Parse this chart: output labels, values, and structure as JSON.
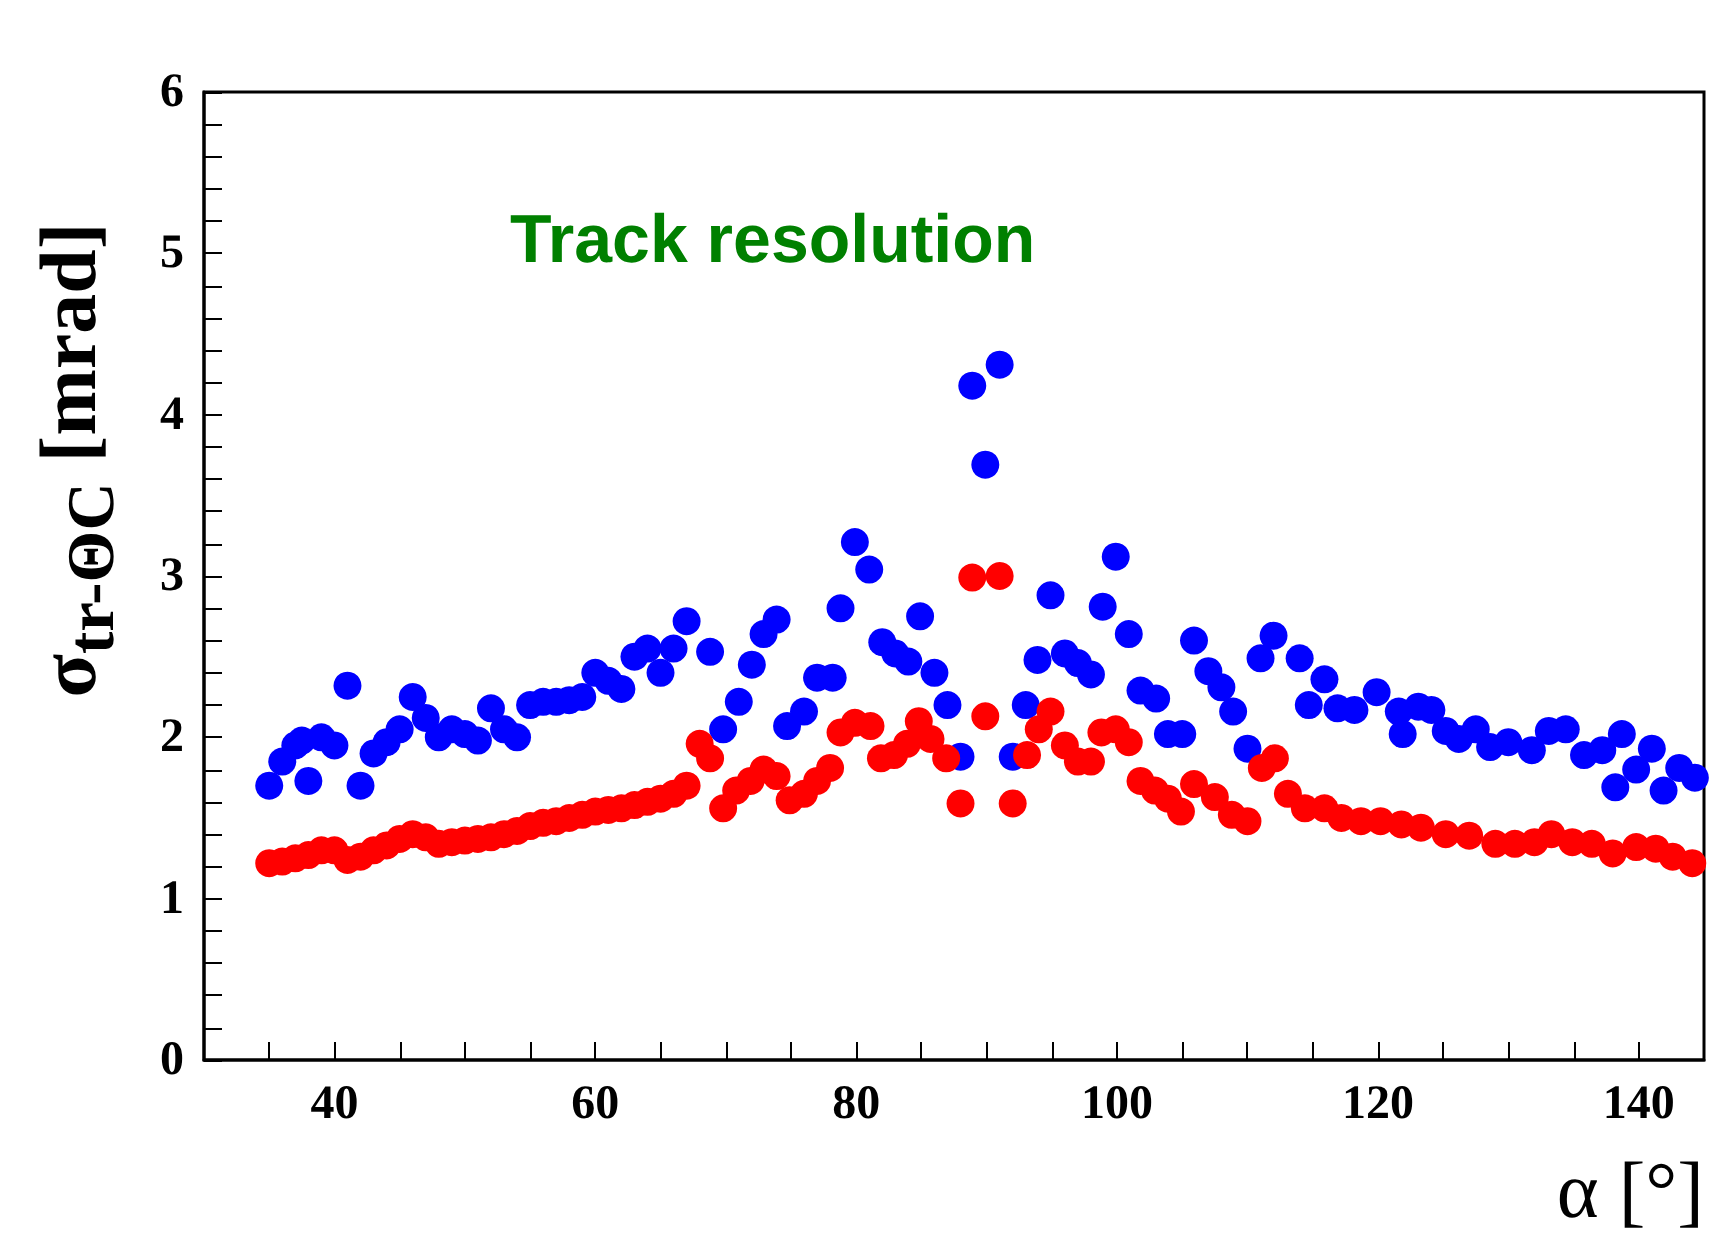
{
  "chart_data": {
    "type": "scatter",
    "title": "Track resolution",
    "xlabel": "α [°]",
    "ylabel": "σ$_{tr-Θ}$$_{C}$ [mrad]",
    "marker": "circle",
    "grid": false,
    "legend": false,
    "xlim": [
      30,
      145
    ],
    "ylim": [
      0,
      6
    ],
    "xticks": [
      {
        "value": 35,
        "label": null
      },
      40,
      {
        "value": 45,
        "label": null
      },
      {
        "value": 50,
        "label": null
      },
      {
        "value": 55,
        "label": null
      },
      60,
      {
        "value": 65,
        "label": null
      },
      {
        "value": 70,
        "label": null
      },
      {
        "value": 75,
        "label": null
      },
      80,
      {
        "value": 85,
        "label": null
      },
      {
        "value": 90,
        "label": null
      },
      {
        "value": 95,
        "label": null
      },
      100,
      {
        "value": 105,
        "label": null
      },
      {
        "value": 110,
        "label": null
      },
      {
        "value": 115,
        "label": null
      },
      120,
      {
        "value": 125,
        "label": null
      },
      {
        "value": 130,
        "label": null
      },
      {
        "value": 135,
        "label": null
      },
      140
    ],
    "yticks": [
      0,
      {
        "value": 0.2,
        "label": null
      },
      {
        "value": 0.4,
        "label": null
      },
      {
        "value": 0.6,
        "label": null
      },
      {
        "value": 0.8,
        "label": null
      },
      1,
      {
        "value": 1.2,
        "label": null
      },
      {
        "value": 1.4,
        "label": null
      },
      {
        "value": 1.6,
        "label": null
      },
      {
        "value": 1.8,
        "label": null
      },
      2,
      {
        "value": 2.2,
        "label": null
      },
      {
        "value": 2.4,
        "label": null
      },
      {
        "value": 2.6,
        "label": null
      },
      {
        "value": 2.8,
        "label": null
      },
      3,
      {
        "value": 3.2,
        "label": null
      },
      {
        "value": 3.4,
        "label": null
      },
      {
        "value": 3.6,
        "label": null
      },
      {
        "value": 3.8,
        "label": null
      },
      4,
      {
        "value": 4.2,
        "label": null
      },
      {
        "value": 4.4,
        "label": null
      },
      {
        "value": 4.6,
        "label": null
      },
      {
        "value": 4.8,
        "label": null
      },
      5,
      {
        "value": 5.2,
        "label": null
      },
      {
        "value": 5.4,
        "label": null
      },
      {
        "value": 5.6,
        "label": null
      },
      {
        "value": 5.8,
        "label": null
      },
      6
    ],
    "series": [
      {
        "color": "#0000ff",
        "x": [
          35,
          36,
          37,
          37.5,
          38,
          39,
          40,
          41,
          42,
          43,
          44,
          45,
          46,
          47,
          48,
          49,
          50,
          51,
          52,
          53,
          54,
          55,
          56,
          57,
          58,
          59,
          60,
          61,
          62,
          63,
          64,
          65,
          66,
          67,
          68.8,
          69.8,
          71,
          72,
          72.9,
          73.9,
          74.7,
          76,
          77,
          78.2,
          78.8,
          79.9,
          81,
          82,
          83,
          84,
          84.9,
          86,
          87,
          88,
          88.9,
          89.9,
          91,
          92,
          93,
          93.9,
          94.9,
          96,
          97,
          98,
          98.9,
          99.9,
          100.9,
          101.8,
          103,
          103.9,
          105,
          105.9,
          107,
          108,
          108.9,
          110,
          111,
          112,
          114,
          114.7,
          115.9,
          116.9,
          118.2,
          119.9,
          121.6,
          121.9,
          123.1,
          124.1,
          125.2,
          126.2,
          127.5,
          128.6,
          130,
          131.8,
          133.1,
          134.4,
          135.8,
          137.2,
          138.2,
          138.7,
          139.8,
          141,
          141.9,
          143.1,
          144.3
        ],
        "values": [
          1.7,
          1.85,
          1.95,
          1.98,
          1.73,
          2.0,
          1.95,
          2.32,
          1.7,
          1.9,
          1.97,
          2.05,
          2.25,
          2.12,
          2.0,
          2.05,
          2.02,
          1.98,
          2.18,
          2.05,
          2.0,
          2.2,
          2.22,
          2.22,
          2.23,
          2.25,
          2.4,
          2.35,
          2.3,
          2.5,
          2.55,
          2.4,
          2.55,
          2.72,
          2.53,
          2.05,
          2.22,
          2.45,
          2.64,
          2.73,
          2.07,
          2.16,
          2.37,
          2.37,
          2.8,
          3.21,
          3.04,
          2.59,
          2.52,
          2.47,
          2.75,
          2.4,
          2.2,
          1.88,
          4.18,
          3.69,
          4.31,
          1.88,
          2.2,
          2.48,
          2.88,
          2.52,
          2.46,
          2.39,
          2.81,
          3.12,
          2.64,
          2.29,
          2.24,
          2.02,
          2.02,
          2.6,
          2.41,
          2.31,
          2.16,
          1.93,
          2.49,
          2.63,
          2.49,
          2.2,
          2.36,
          2.18,
          2.17,
          2.28,
          2.16,
          2.02,
          2.19,
          2.17,
          2.04,
          1.99,
          2.05,
          1.94,
          1.97,
          1.92,
          2.04,
          2.05,
          1.89,
          1.92,
          1.69,
          2.02,
          1.8,
          1.93,
          1.67,
          1.81,
          1.75
        ]
      },
      {
        "color": "#ff0000",
        "x": [
          35,
          36,
          37,
          38,
          39,
          40,
          41,
          42,
          43,
          44,
          45,
          46,
          47,
          48,
          49,
          50,
          51,
          52,
          53,
          54,
          55,
          56,
          57,
          58,
          59,
          60,
          61,
          62,
          63,
          64,
          65,
          66,
          67,
          68,
          68.8,
          69.8,
          70.8,
          71.9,
          72.9,
          73.9,
          74.9,
          76,
          77,
          78,
          78.8,
          79.9,
          81.1,
          81.9,
          82.9,
          83.9,
          84.8,
          85.7,
          86.9,
          88,
          88.9,
          89.9,
          91,
          92,
          93.1,
          94,
          94.9,
          96,
          97,
          98,
          98.8,
          99.9,
          100.9,
          101.8,
          102.9,
          103.9,
          104.9,
          105.9,
          107.5,
          108.8,
          110,
          111.1,
          112.1,
          113.1,
          114.4,
          115.9,
          117.2,
          118.7,
          120.2,
          121.8,
          123.3,
          125.2,
          127,
          129,
          130.5,
          132,
          133.3,
          134.9,
          136.4,
          138,
          139.8,
          141.3,
          142.6,
          144.1
        ],
        "values": [
          1.22,
          1.23,
          1.25,
          1.27,
          1.3,
          1.3,
          1.24,
          1.26,
          1.3,
          1.33,
          1.37,
          1.4,
          1.38,
          1.34,
          1.35,
          1.36,
          1.37,
          1.38,
          1.4,
          1.42,
          1.45,
          1.47,
          1.48,
          1.5,
          1.52,
          1.54,
          1.55,
          1.56,
          1.58,
          1.6,
          1.62,
          1.65,
          1.7,
          1.96,
          1.87,
          1.56,
          1.67,
          1.73,
          1.8,
          1.76,
          1.61,
          1.65,
          1.73,
          1.81,
          2.03,
          2.09,
          2.07,
          1.87,
          1.89,
          1.96,
          2.1,
          1.99,
          1.87,
          1.59,
          2.99,
          2.13,
          3.0,
          1.59,
          1.89,
          2.05,
          2.16,
          1.95,
          1.85,
          1.85,
          2.03,
          2.05,
          1.97,
          1.73,
          1.67,
          1.62,
          1.54,
          1.71,
          1.63,
          1.52,
          1.48,
          1.81,
          1.87,
          1.65,
          1.56,
          1.56,
          1.5,
          1.48,
          1.48,
          1.46,
          1.44,
          1.4,
          1.39,
          1.34,
          1.34,
          1.35,
          1.4,
          1.35,
          1.34,
          1.28,
          1.32,
          1.31,
          1.26,
          1.22
        ]
      }
    ]
  }
}
